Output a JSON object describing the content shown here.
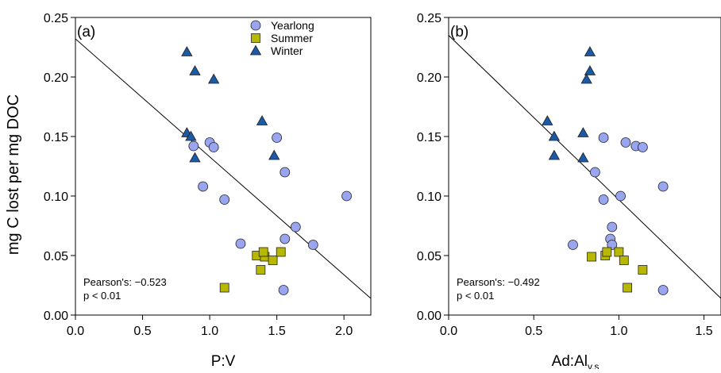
{
  "y_axis_label": "mg C lost per mg DOC",
  "chart_data": [
    {
      "type": "scatter",
      "panel_label": "(a)",
      "xlabel": "P:V",
      "xlim": [
        0.0,
        2.2
      ],
      "ylim": [
        0.0,
        0.25
      ],
      "xticks": [
        "0.0",
        "0.5",
        "1.0",
        "1.5",
        "2.0"
      ],
      "yticks": [
        "0.00",
        "0.05",
        "0.10",
        "0.15",
        "0.20",
        "0.25"
      ],
      "legend_position": "top-right",
      "series": [
        {
          "name": "Yearlong",
          "marker": "circle",
          "color": "#9aa5f0",
          "x": [
            0.88,
            1.0,
            1.03,
            0.95,
            1.11,
            1.5,
            1.56,
            2.02,
            1.64,
            1.56,
            1.77,
            1.23,
            1.55
          ],
          "y": [
            0.142,
            0.145,
            0.141,
            0.108,
            0.097,
            0.149,
            0.12,
            0.1,
            0.074,
            0.064,
            0.059,
            0.06,
            0.021
          ]
        },
        {
          "name": "Summer",
          "marker": "square",
          "color": "#b8b800",
          "x": [
            1.11,
            1.35,
            1.38,
            1.41,
            1.4,
            1.47,
            1.53
          ],
          "y": [
            0.023,
            0.05,
            0.038,
            0.049,
            0.053,
            0.046,
            0.053
          ]
        },
        {
          "name": "Winter",
          "marker": "triangle",
          "color": "#1a5aa6",
          "x": [
            0.83,
            0.89,
            1.03,
            0.83,
            0.86,
            0.89,
            1.39,
            1.48
          ],
          "y": [
            0.221,
            0.205,
            0.198,
            0.153,
            0.15,
            0.132,
            0.163,
            0.134
          ]
        }
      ],
      "fit_line": {
        "x": [
          0.0,
          2.2
        ],
        "y": [
          0.232,
          0.014
        ]
      },
      "annotations": [
        "Pearson's: −0.523",
        "p < 0.01"
      ]
    },
    {
      "type": "scatter",
      "panel_label": "(b)",
      "xlabel": "Ad:Al",
      "xlabel_subscript": "v,s",
      "xlim": [
        0.0,
        1.6
      ],
      "ylim": [
        0.0,
        0.25
      ],
      "xticks": [
        "0.0",
        "0.5",
        "1.0",
        "1.5"
      ],
      "yticks": [
        "0.00",
        "0.05",
        "0.10",
        "0.15",
        "0.20",
        "0.25"
      ],
      "series": [
        {
          "name": "Yearlong",
          "marker": "circle",
          "color": "#9aa5f0",
          "x": [
            0.91,
            1.04,
            1.1,
            1.14,
            0.86,
            1.01,
            0.91,
            1.26,
            0.96,
            0.95,
            0.96,
            0.73,
            1.26
          ],
          "y": [
            0.149,
            0.145,
            0.142,
            0.141,
            0.12,
            0.1,
            0.097,
            0.108,
            0.074,
            0.064,
            0.059,
            0.059,
            0.021
          ]
        },
        {
          "name": "Summer",
          "marker": "square",
          "color": "#b8b800",
          "x": [
            0.84,
            0.92,
            0.93,
            1.0,
            1.03,
            1.14,
            1.05
          ],
          "y": [
            0.049,
            0.05,
            0.053,
            0.053,
            0.046,
            0.038,
            0.023
          ]
        },
        {
          "name": "Winter",
          "marker": "triangle",
          "color": "#1a5aa6",
          "x": [
            0.83,
            0.83,
            0.81,
            0.58,
            0.62,
            0.62,
            0.79,
            0.79
          ],
          "y": [
            0.221,
            0.205,
            0.198,
            0.163,
            0.15,
            0.134,
            0.153,
            0.132
          ]
        }
      ],
      "fit_line": {
        "x": [
          0.0,
          1.6
        ],
        "y": [
          0.235,
          0.014
        ]
      },
      "annotations": [
        "Pearson's: −0.492",
        "p < 0.01"
      ]
    }
  ]
}
